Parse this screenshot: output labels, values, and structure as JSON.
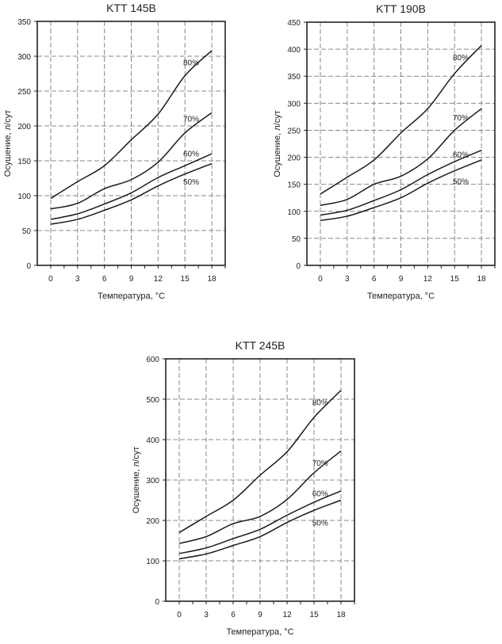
{
  "chart_data": [
    {
      "type": "line",
      "title": "KTT 145B",
      "xlabel": "Температура, °C",
      "ylabel": "Осушение, л/сут",
      "x": [
        0,
        3,
        6,
        9,
        12,
        15,
        18
      ],
      "xticks": [
        "0",
        "3",
        "6",
        "9",
        "12",
        "15",
        "18"
      ],
      "xlim": [
        -1.5,
        19.5
      ],
      "ylim": [
        0,
        350
      ],
      "yticks": [
        "0",
        "50",
        "100",
        "150",
        "200",
        "250",
        "300",
        "350"
      ],
      "ytick_values": [
        0,
        50,
        100,
        150,
        200,
        250,
        300,
        350
      ],
      "grid": true,
      "series": [
        {
          "name": "80%",
          "values": [
            96,
            120,
            143,
            180,
            217,
            272,
            308
          ]
        },
        {
          "name": "70%",
          "values": [
            81,
            89,
            110,
            123,
            148,
            190,
            219
          ]
        },
        {
          "name": "60%",
          "values": [
            66,
            74,
            88,
            104,
            126,
            143,
            160
          ]
        },
        {
          "name": "50%",
          "values": [
            59,
            66,
            79,
            94,
            114,
            131,
            146
          ]
        }
      ],
      "annotations": [
        {
          "text": "80%",
          "x": 14.8,
          "y": 287
        },
        {
          "text": "70%",
          "x": 14.8,
          "y": 206
        },
        {
          "text": "60%",
          "x": 14.8,
          "y": 156
        },
        {
          "text": "50%",
          "x": 14.8,
          "y": 116
        }
      ]
    },
    {
      "type": "line",
      "title": "KTT 190B",
      "xlabel": "Температура, °C",
      "ylabel": "Осушение, л/сут",
      "x": [
        0,
        3,
        6,
        9,
        12,
        15,
        18
      ],
      "xticks": [
        "0",
        "3",
        "6",
        "9",
        "12",
        "15",
        "18"
      ],
      "xlim": [
        -1.5,
        19.5
      ],
      "ylim": [
        0,
        450
      ],
      "yticks": [
        "0",
        "50",
        "100",
        "150",
        "200",
        "250",
        "300",
        "350",
        "400",
        "450"
      ],
      "ytick_values": [
        0,
        50,
        100,
        150,
        200,
        250,
        300,
        350,
        400,
        450
      ],
      "grid": true,
      "series": [
        {
          "name": "80%",
          "values": [
            132,
            163,
            195,
            245,
            290,
            355,
            407
          ]
        },
        {
          "name": "70%",
          "values": [
            111,
            122,
            150,
            165,
            197,
            250,
            290
          ]
        },
        {
          "name": "60%",
          "values": [
            93,
            102,
            120,
            140,
            168,
            192,
            213
          ]
        },
        {
          "name": "50%",
          "values": [
            83,
            91,
            107,
            125,
            152,
            175,
            195
          ]
        }
      ],
      "annotations": [
        {
          "text": "80%",
          "x": 14.8,
          "y": 380
        },
        {
          "text": "70%",
          "x": 14.8,
          "y": 268
        },
        {
          "text": "60%",
          "x": 14.8,
          "y": 200
        },
        {
          "text": "50%",
          "x": 14.8,
          "y": 150
        }
      ]
    },
    {
      "type": "line",
      "title": "KTT 245B",
      "xlabel": "Температура, °C",
      "ylabel": "Осушение, л/сут",
      "x": [
        0,
        3,
        6,
        9,
        12,
        15,
        18
      ],
      "xticks": [
        "0",
        "3",
        "6",
        "9",
        "12",
        "15",
        "18"
      ],
      "xlim": [
        -1.5,
        19.5
      ],
      "ylim": [
        0,
        600
      ],
      "yticks": [
        "0",
        "100",
        "200",
        "300",
        "400",
        "500",
        "600"
      ],
      "ytick_values": [
        0,
        100,
        200,
        300,
        400,
        500,
        600
      ],
      "grid": true,
      "series": [
        {
          "name": "80%",
          "values": [
            170,
            210,
            250,
            312,
            370,
            455,
            522
          ]
        },
        {
          "name": "70%",
          "values": [
            143,
            160,
            192,
            210,
            252,
            318,
            372
          ]
        },
        {
          "name": "60%",
          "values": [
            118,
            132,
            155,
            178,
            213,
            245,
            273
          ]
        },
        {
          "name": "50%",
          "values": [
            105,
            117,
            138,
            160,
            195,
            225,
            250
          ]
        }
      ],
      "annotations": [
        {
          "text": "80%",
          "x": 14.8,
          "y": 485
        },
        {
          "text": "70%",
          "x": 14.8,
          "y": 335
        },
        {
          "text": "60%",
          "x": 14.8,
          "y": 260
        },
        {
          "text": "50%",
          "x": 14.8,
          "y": 187
        }
      ]
    }
  ]
}
